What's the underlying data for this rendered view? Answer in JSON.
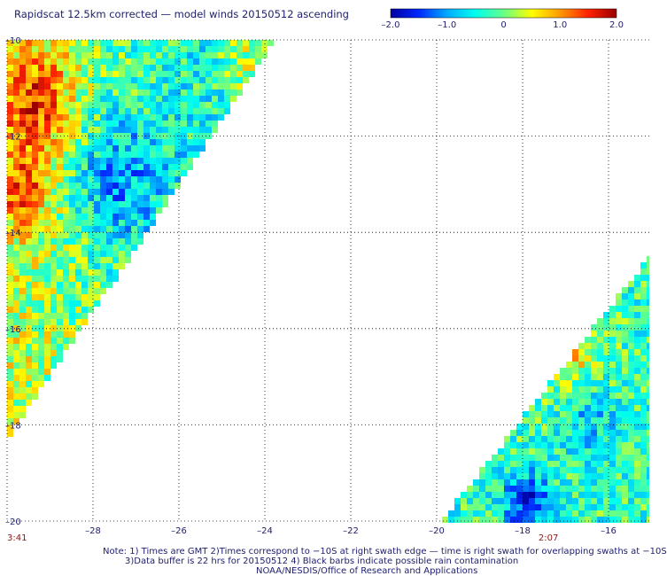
{
  "title": "Rapidscat 12.5km corrected — model winds 20150512 ascending",
  "colorbar": {
    "ticks": [
      "–2.0",
      "–1.0",
      "0",
      "1.0",
      "2.0"
    ],
    "values": [
      -2.0,
      -1.0,
      0,
      1.0,
      2.0
    ],
    "range": [
      -2.0,
      2.0
    ],
    "colors": [
      "#0000a0",
      "#0028ff",
      "#00aaff",
      "#00ffee",
      "#66ff88",
      "#ffff00",
      "#ff9900",
      "#ff2200",
      "#990000"
    ]
  },
  "map": {
    "type": "heatmap",
    "lon_range": [
      -30,
      -15
    ],
    "lat_range": [
      -20,
      -10
    ],
    "x_ticks": [
      "–28",
      "–26",
      "–24",
      "–22",
      "–20",
      "–18",
      "–16"
    ],
    "x_tick_values": [
      -28,
      -26,
      -24,
      -22,
      -20,
      -18,
      -16
    ],
    "y_ticks": [
      "–10",
      "–12",
      "–14",
      "–16",
      "–18",
      "–20"
    ],
    "y_tick_values": [
      -10,
      -12,
      -14,
      -16,
      -18,
      -20
    ],
    "grid": true,
    "time_labels": [
      {
        "text": "3:41",
        "lon": -30
      },
      {
        "text": "2:07",
        "lon": -17.4
      }
    ],
    "swaths": [
      {
        "name": "west",
        "description_hidden": true,
        "corners_lonlat": [
          [
            -30,
            -10
          ],
          [
            -24.2,
            -10
          ],
          [
            -30,
            -18.2
          ]
        ]
      },
      {
        "name": "east",
        "description_hidden": true,
        "corners_lonlat": [
          [
            -20,
            -20
          ],
          [
            -15,
            -20
          ],
          [
            -15,
            -14.6
          ]
        ]
      }
    ],
    "tick_color": "#202070",
    "time_color": "#8b1a1a",
    "grid_color": "#000000"
  },
  "notes": {
    "line1": "Note: 1) Times are GMT 2)Times correspond to −10S at right swath edge — time is right swath for overlapping swaths at −10S",
    "line2": "3)Data buffer is 22 hrs for 20150512 4) Black barbs indicate possible rain contamination",
    "line3": "NOAA/NESDIS/Office of Research and Applications"
  }
}
